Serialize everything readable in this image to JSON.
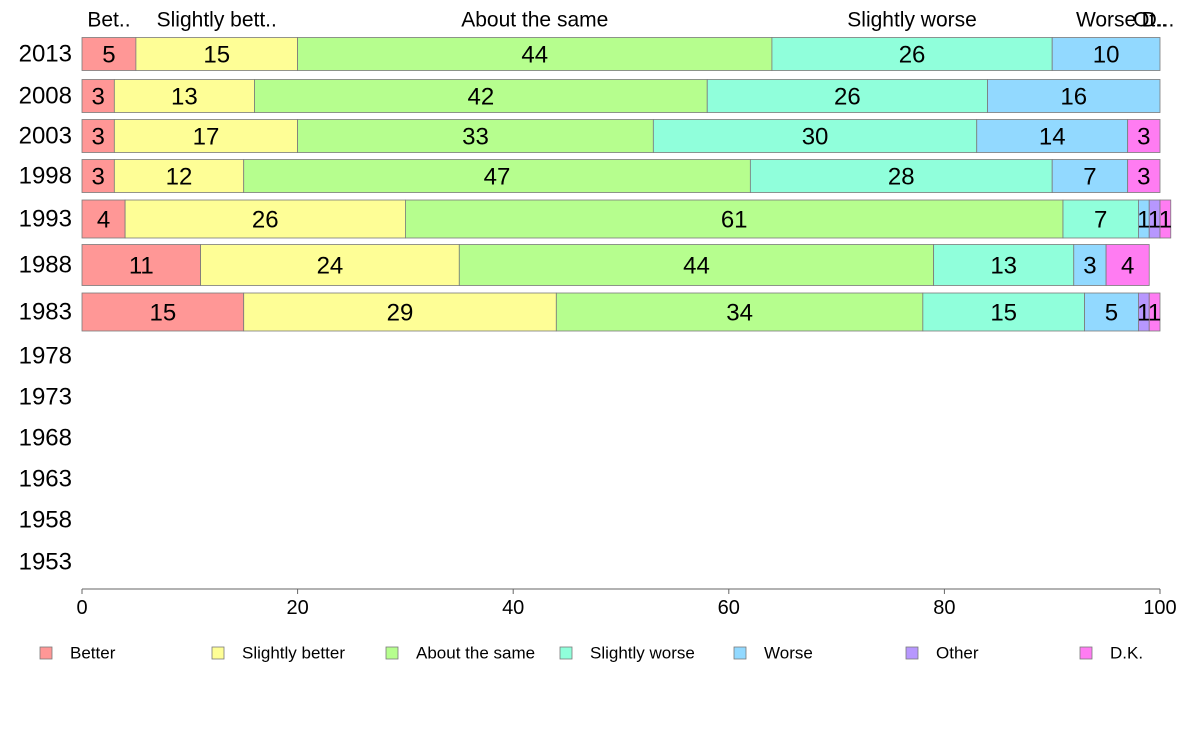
{
  "chart_data": {
    "type": "bar",
    "orientation": "horizontal",
    "stacked": true,
    "categories": [
      "2013",
      "2008",
      "2003",
      "1998",
      "1993",
      "1988",
      "1983",
      "1978",
      "1973",
      "1968",
      "1963",
      "1958",
      "1953"
    ],
    "series": [
      {
        "name": "Better",
        "color": "#ff9796",
        "values": [
          5,
          3,
          3,
          3,
          4,
          11,
          15,
          null,
          null,
          null,
          null,
          null,
          null
        ]
      },
      {
        "name": "Slightly better",
        "color": "#fefe96",
        "values": [
          15,
          13,
          17,
          12,
          26,
          24,
          29,
          null,
          null,
          null,
          null,
          null,
          null
        ]
      },
      {
        "name": "About the same",
        "color": "#b6fe8e",
        "values": [
          44,
          42,
          33,
          47,
          61,
          44,
          34,
          null,
          null,
          null,
          null,
          null,
          null
        ]
      },
      {
        "name": "Slightly worse",
        "color": "#90ffdb",
        "values": [
          26,
          26,
          30,
          28,
          7,
          13,
          15,
          null,
          null,
          null,
          null,
          null,
          null
        ]
      },
      {
        "name": "Worse",
        "color": "#92d9ff",
        "values": [
          10,
          16,
          14,
          7,
          1,
          3,
          5,
          null,
          null,
          null,
          null,
          null,
          null
        ]
      },
      {
        "name": "Other",
        "color": "#b797fe",
        "values": [
          0,
          0,
          0,
          0,
          1,
          0,
          1,
          null,
          null,
          null,
          null,
          null,
          null
        ]
      },
      {
        "name": "D.K.",
        "color": "#ff7cf2",
        "values": [
          0,
          0,
          3,
          3,
          1,
          4,
          1,
          null,
          null,
          null,
          null,
          null,
          null
        ]
      }
    ],
    "top_labels": [
      "Bet..",
      "Slightly bett..",
      "About the same",
      "Slightly worse",
      "Worse",
      "Ot..",
      "D..."
    ],
    "xlim": [
      0,
      100
    ],
    "xticks": [
      0,
      20,
      40,
      60,
      80,
      100
    ],
    "grid": false,
    "legend": "bottom"
  }
}
